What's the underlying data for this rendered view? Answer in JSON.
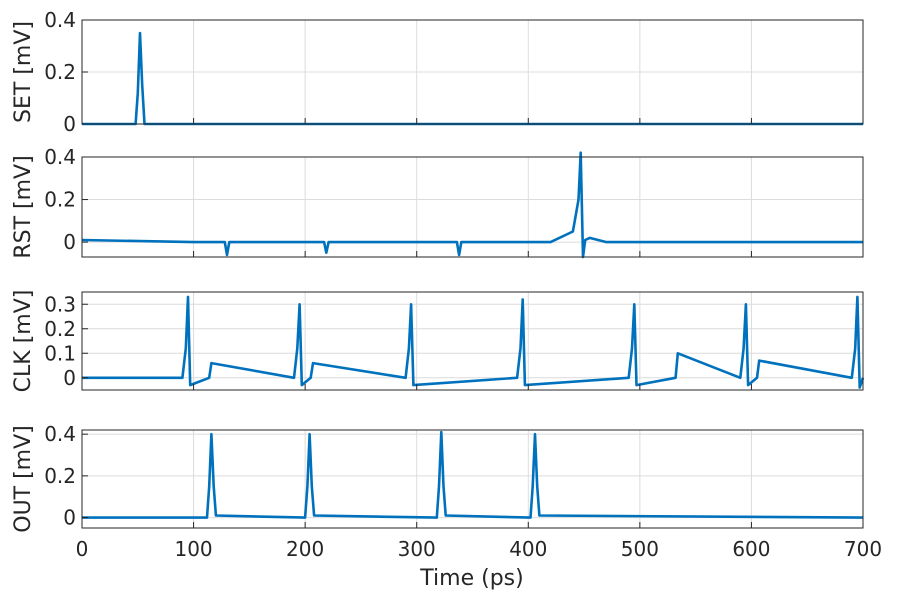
{
  "chart_data": [
    {
      "type": "line",
      "ylabel": "SET [mV]",
      "xlim": [
        0,
        700
      ],
      "ylim": [
        0,
        0.4
      ],
      "yticks": [
        0,
        0.2,
        0.4
      ],
      "ytick_labels": [
        "0",
        "0.2",
        "0.4"
      ],
      "grid": true,
      "color": "#0072BD",
      "series": [
        {
          "x": [
            0,
            48,
            50,
            52,
            54,
            56,
            700
          ],
          "y": [
            0,
            0,
            0.12,
            0.35,
            0.15,
            0,
            0
          ]
        }
      ]
    },
    {
      "type": "line",
      "ylabel": "RST [mV]",
      "xlim": [
        0,
        700
      ],
      "ylim": [
        -0.07,
        0.4
      ],
      "yticks": [
        0,
        0.2,
        0.4
      ],
      "ytick_labels": [
        "0",
        "0.2",
        "0.4"
      ],
      "grid": true,
      "color": "#0072BD",
      "series": [
        {
          "x": [
            0,
            100,
            128,
            130,
            132,
            200,
            217,
            219,
            221,
            300,
            336,
            338,
            340,
            420,
            440,
            445,
            447,
            449,
            451,
            455,
            470,
            700
          ],
          "y": [
            0.01,
            0.0,
            0.0,
            -0.06,
            0.0,
            0.0,
            0.0,
            -0.05,
            0.0,
            0.0,
            0.0,
            -0.06,
            0.0,
            0.0,
            0.05,
            0.2,
            0.42,
            -0.07,
            0.01,
            0.02,
            0.0,
            0.0
          ]
        }
      ]
    },
    {
      "type": "line",
      "ylabel": "CLK [mV]",
      "xlim": [
        0,
        700
      ],
      "ylim": [
        -0.05,
        0.35
      ],
      "yticks": [
        0,
        0.1,
        0.2,
        0.3
      ],
      "ytick_labels": [
        "0",
        "0.1",
        "0.2",
        "0.3"
      ],
      "grid": true,
      "color": "#0072BD",
      "series": [
        {
          "x": [
            0,
            90,
            93,
            95,
            97,
            114,
            116,
            190,
            193,
            195,
            197,
            205,
            207,
            290,
            293,
            295,
            297,
            390,
            393,
            395,
            397,
            490,
            493,
            495,
            497,
            532,
            534,
            590,
            593,
            595,
            597,
            605,
            607,
            690,
            693,
            695,
            697,
            700
          ],
          "y": [
            0.0,
            0.0,
            0.12,
            0.33,
            -0.03,
            0.0,
            0.06,
            0.0,
            0.12,
            0.3,
            -0.03,
            0.0,
            0.06,
            0.0,
            0.12,
            0.3,
            -0.03,
            0.0,
            0.12,
            0.32,
            -0.03,
            0.0,
            0.12,
            0.3,
            -0.03,
            0.0,
            0.1,
            0.0,
            0.12,
            0.3,
            -0.03,
            0.0,
            0.07,
            0.0,
            0.12,
            0.33,
            -0.04,
            0.0
          ]
        }
      ]
    },
    {
      "type": "line",
      "ylabel": "OUT [mV]",
      "xlabel": "Time (ps)",
      "xlim": [
        0,
        700
      ],
      "ylim": [
        -0.05,
        0.42
      ],
      "yticks": [
        0,
        0.2,
        0.4
      ],
      "ytick_labels": [
        "0",
        "0.2",
        "0.4"
      ],
      "xticks": [
        0,
        100,
        200,
        300,
        400,
        500,
        600,
        700
      ],
      "xtick_labels": [
        "0",
        "100",
        "200",
        "300",
        "400",
        "500",
        "600",
        "700"
      ],
      "grid": true,
      "color": "#0072BD",
      "series": [
        {
          "x": [
            0,
            112,
            114,
            116,
            118,
            120,
            200,
            202,
            204,
            206,
            208,
            318,
            320,
            322,
            324,
            326,
            402,
            404,
            406,
            408,
            410,
            700
          ],
          "y": [
            0.0,
            0.0,
            0.15,
            0.4,
            0.15,
            0.01,
            0.0,
            0.15,
            0.4,
            0.15,
            0.01,
            0.0,
            0.15,
            0.41,
            0.15,
            0.01,
            0.0,
            0.15,
            0.4,
            0.15,
            0.01,
            0.0
          ]
        }
      ]
    }
  ]
}
